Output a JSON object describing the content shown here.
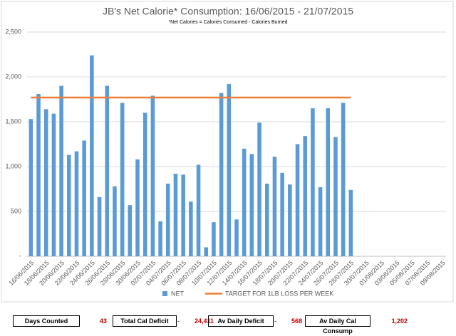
{
  "chart_data": {
    "type": "bar",
    "title": "JB's Net Calorie* Consumption: 16/06/2015 - 21/07/2015",
    "subtitle": "*Net Calories = Calories Consumed - Calories Burned",
    "categories": [
      "16/06/2015",
      null,
      "18/06/2015",
      null,
      "20/06/2015",
      null,
      "22/06/2015",
      null,
      "24/06/2015",
      null,
      "26/06/2015",
      null,
      "28/06/2015",
      null,
      "30/06/2015",
      null,
      "02/07/2015",
      null,
      "04/07/2015",
      null,
      "06/07/2015",
      null,
      "08/07/2015",
      null,
      "10/07/2015",
      null,
      "12/07/2015",
      null,
      "14/07/2015",
      null,
      "16/07/2015",
      null,
      "18/07/2015",
      null,
      "20/07/2015",
      null,
      "22/07/2015",
      null,
      "24/07/2015",
      null,
      "26/07/2015",
      null,
      "28/07/2015",
      null,
      "30/07/2015",
      null,
      "01/08/2015",
      null,
      "03/08/2015",
      null,
      "05/08/2015",
      null,
      "07/08/2015",
      null,
      "09/08/2015"
    ],
    "series": [
      {
        "name": "NET",
        "type": "bar",
        "color": "#5b9bd5",
        "values": [
          1530,
          1810,
          1640,
          1590,
          1900,
          1130,
          1170,
          1290,
          2240,
          660,
          1900,
          780,
          1710,
          570,
          1080,
          1600,
          1790,
          390,
          810,
          920,
          910,
          610,
          1020,
          100,
          380,
          1820,
          1920,
          410,
          1200,
          1140,
          1490,
          810,
          1110,
          930,
          800,
          1250,
          1340,
          1650,
          770,
          1650,
          1330,
          1710,
          740,
          null,
          null,
          null,
          null,
          null,
          null,
          null,
          null,
          null,
          null,
          null,
          null
        ]
      },
      {
        "name": "TARGET FOR 1LB LOSS PER WEEK",
        "type": "line",
        "color": "#ed7d31",
        "values": [
          1770,
          1770,
          1770,
          1770,
          1770,
          1770,
          1770,
          1770,
          1770,
          1770,
          1770,
          1770,
          1770,
          1770,
          1770,
          1770,
          1770,
          1770,
          1770,
          1770,
          1770,
          1770,
          1770,
          1770,
          1770,
          1770,
          1770,
          1770,
          1770,
          1770,
          1770,
          1770,
          1770,
          1770,
          1770,
          1770,
          1770,
          1770,
          1770,
          1770,
          1770,
          1770,
          1770,
          null,
          null,
          null,
          null,
          null,
          null,
          null,
          null,
          null,
          null,
          null,
          null
        ]
      }
    ],
    "ylim": [
      0,
      2500
    ],
    "yticks": [
      {
        "value": 0,
        "label": "-"
      },
      500,
      {
        "value": 1000,
        "label": "1,000"
      },
      {
        "value": 1500,
        "label": "1,500"
      },
      {
        "value": 2000,
        "label": "2,000"
      },
      {
        "value": 2500,
        "label": "2,500"
      }
    ],
    "grid": true,
    "legend": "bottom"
  },
  "summary": [
    {
      "label": "Days Counted",
      "value": "43"
    },
    {
      "label": "Total Cal Deficit",
      "sign": "-",
      "value": "24,411"
    },
    {
      "label": "Av Daily Deficit",
      "sign": "-",
      "value": "568"
    },
    {
      "label": "Av Daily Cal Consump",
      "value": "1,202"
    }
  ]
}
